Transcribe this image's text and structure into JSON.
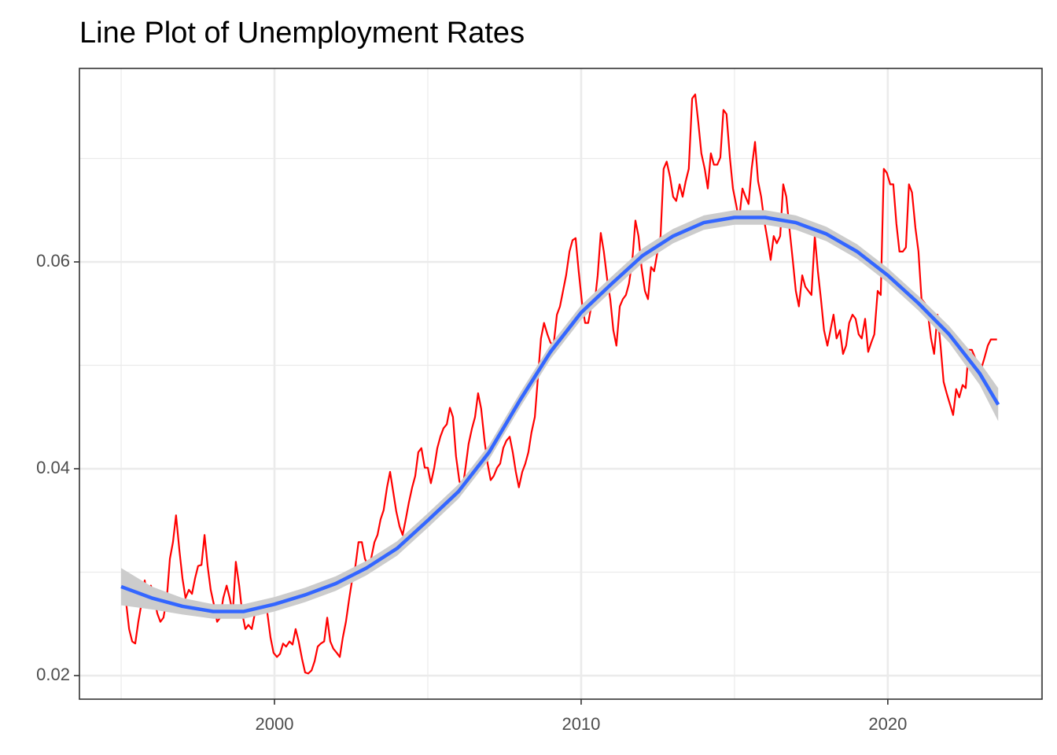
{
  "chart_data": {
    "type": "line",
    "title": "Line Plot of Unemployment Rates",
    "xlim": [
      1993.64,
      2025.03
    ],
    "xticks": [
      2000,
      2010,
      2020
    ],
    "ylim": [
      0.01772,
      0.07871
    ],
    "yticks": [
      0.02,
      0.04,
      0.06
    ],
    "minor_xticks": [
      1995,
      2005,
      2015,
      2025
    ],
    "minor_yticks": [
      0.03,
      0.05,
      0.07
    ],
    "grid": true,
    "series": [
      {
        "color": "#ff0000",
        "x": [
          1995.05,
          1995.15,
          1995.26,
          1995.36,
          1995.46,
          1995.56,
          1995.67,
          1995.77,
          1995.87,
          1995.97,
          1996.08,
          1996.18,
          1996.28,
          1996.38,
          1996.49,
          1996.59,
          1996.69,
          1996.79,
          1996.9,
          1997,
          1997.1,
          1997.21,
          1997.31,
          1997.41,
          1997.51,
          1997.62,
          1997.72,
          1997.82,
          1997.92,
          1998.03,
          1998.13,
          1998.23,
          1998.33,
          1998.44,
          1998.54,
          1998.64,
          1998.74,
          1998.85,
          1998.95,
          1999.05,
          1999.15,
          1999.26,
          1999.36,
          1999.46,
          1999.56,
          1999.67,
          1999.77,
          1999.87,
          1999.97,
          2000.08,
          2000.18,
          2000.28,
          2000.38,
          2000.49,
          2000.59,
          2000.69,
          2000.79,
          2000.9,
          2001,
          2001.1,
          2001.21,
          2001.31,
          2001.41,
          2001.51,
          2001.62,
          2001.72,
          2001.82,
          2001.92,
          2002.03,
          2002.13,
          2002.23,
          2002.33,
          2002.44,
          2002.54,
          2002.64,
          2002.74,
          2002.85,
          2002.95,
          2003.05,
          2003.15,
          2003.26,
          2003.36,
          2003.46,
          2003.56,
          2003.67,
          2003.77,
          2003.87,
          2003.97,
          2004.08,
          2004.18,
          2004.28,
          2004.38,
          2004.49,
          2004.59,
          2004.69,
          2004.79,
          2004.9,
          2005,
          2005.1,
          2005.21,
          2005.31,
          2005.41,
          2005.51,
          2005.62,
          2005.72,
          2005.82,
          2005.92,
          2006.03,
          2006.13,
          2006.23,
          2006.33,
          2006.44,
          2006.54,
          2006.64,
          2006.74,
          2006.85,
          2006.95,
          2007.05,
          2007.15,
          2007.26,
          2007.36,
          2007.46,
          2007.56,
          2007.67,
          2007.77,
          2007.87,
          2007.97,
          2008.08,
          2008.18,
          2008.28,
          2008.38,
          2008.49,
          2008.59,
          2008.69,
          2008.79,
          2008.9,
          2009,
          2009.1,
          2009.21,
          2009.31,
          2009.41,
          2009.51,
          2009.62,
          2009.72,
          2009.82,
          2009.92,
          2010.03,
          2010.13,
          2010.23,
          2010.33,
          2010.44,
          2010.54,
          2010.64,
          2010.74,
          2010.85,
          2010.95,
          2011.05,
          2011.15,
          2011.26,
          2011.36,
          2011.46,
          2011.56,
          2011.67,
          2011.77,
          2011.87,
          2011.97,
          2012.08,
          2012.18,
          2012.28,
          2012.38,
          2012.49,
          2012.59,
          2012.69,
          2012.79,
          2012.9,
          2013,
          2013.1,
          2013.21,
          2013.31,
          2013.41,
          2013.51,
          2013.62,
          2013.72,
          2013.82,
          2013.92,
          2014.03,
          2014.13,
          2014.23,
          2014.33,
          2014.44,
          2014.54,
          2014.64,
          2014.74,
          2014.85,
          2014.95,
          2015.05,
          2015.15,
          2015.26,
          2015.36,
          2015.46,
          2015.56,
          2015.67,
          2015.77,
          2015.87,
          2015.97,
          2016.08,
          2016.18,
          2016.28,
          2016.38,
          2016.49,
          2016.59,
          2016.69,
          2016.79,
          2016.9,
          2017,
          2017.1,
          2017.21,
          2017.31,
          2017.41,
          2017.51,
          2017.62,
          2017.72,
          2017.82,
          2017.92,
          2018.03,
          2018.13,
          2018.23,
          2018.33,
          2018.44,
          2018.54,
          2018.64,
          2018.74,
          2018.85,
          2018.95,
          2019.05,
          2019.15,
          2019.26,
          2019.36,
          2019.46,
          2019.56,
          2019.67,
          2019.77,
          2019.87,
          2019.97,
          2020.08,
          2020.18,
          2020.28,
          2020.38,
          2020.49,
          2020.59,
          2020.69,
          2020.79,
          2020.9,
          2021,
          2021.1,
          2021.21,
          2021.31,
          2021.41,
          2021.51,
          2021.62,
          2021.72,
          2021.82,
          2021.92,
          2022.03,
          2022.13,
          2022.23,
          2022.33,
          2022.44,
          2022.54,
          2022.64,
          2022.74,
          2022.85,
          2022.95,
          2023.05,
          2023.15,
          2023.26,
          2023.36,
          2023.46,
          2023.56
        ],
        "values": [
          0.0283,
          0.0274,
          0.0245,
          0.0233,
          0.0231,
          0.0252,
          0.0271,
          0.0292,
          0.0268,
          0.0287,
          0.0275,
          0.026,
          0.0252,
          0.0256,
          0.0275,
          0.0313,
          0.0329,
          0.0355,
          0.0321,
          0.0294,
          0.0275,
          0.0283,
          0.0279,
          0.0294,
          0.0306,
          0.0307,
          0.0336,
          0.0306,
          0.0283,
          0.0268,
          0.0252,
          0.0256,
          0.0275,
          0.0287,
          0.0275,
          0.026,
          0.031,
          0.0287,
          0.026,
          0.0245,
          0.0249,
          0.0245,
          0.026,
          0.0259,
          0.0264,
          0.0271,
          0.026,
          0.0237,
          0.0222,
          0.0218,
          0.0221,
          0.0231,
          0.0228,
          0.0233,
          0.023,
          0.0245,
          0.0233,
          0.0216,
          0.0203,
          0.0202,
          0.0205,
          0.0214,
          0.0228,
          0.0231,
          0.0233,
          0.0256,
          0.0233,
          0.0226,
          0.0222,
          0.0218,
          0.0237,
          0.0252,
          0.0275,
          0.0294,
          0.0306,
          0.0329,
          0.0329,
          0.0313,
          0.0306,
          0.0313,
          0.0329,
          0.0336,
          0.0351,
          0.036,
          0.0382,
          0.0397,
          0.0378,
          0.0359,
          0.0344,
          0.0336,
          0.0351,
          0.0367,
          0.0382,
          0.0393,
          0.0416,
          0.042,
          0.0401,
          0.0401,
          0.0386,
          0.0401,
          0.042,
          0.0431,
          0.0439,
          0.0443,
          0.0459,
          0.045,
          0.0412,
          0.0388,
          0.038,
          0.0401,
          0.0424,
          0.0439,
          0.045,
          0.0473,
          0.0458,
          0.0427,
          0.0405,
          0.0389,
          0.0393,
          0.0401,
          0.0405,
          0.042,
          0.0427,
          0.0431,
          0.0416,
          0.0397,
          0.0382,
          0.0397,
          0.0405,
          0.0416,
          0.0435,
          0.045,
          0.0488,
          0.0526,
          0.0541,
          0.053,
          0.0522,
          0.0519,
          0.0549,
          0.0557,
          0.0572,
          0.0587,
          0.061,
          0.0621,
          0.0623,
          0.0591,
          0.056,
          0.0541,
          0.0541,
          0.0557,
          0.056,
          0.0587,
          0.0628,
          0.061,
          0.0583,
          0.0564,
          0.0534,
          0.0519,
          0.0557,
          0.0564,
          0.0568,
          0.0579,
          0.0602,
          0.064,
          0.0625,
          0.0595,
          0.0572,
          0.0564,
          0.0595,
          0.0591,
          0.061,
          0.0625,
          0.069,
          0.0697,
          0.0682,
          0.0663,
          0.0659,
          0.0675,
          0.0663,
          0.0678,
          0.069,
          0.0758,
          0.0762,
          0.0735,
          0.0705,
          0.069,
          0.0671,
          0.0705,
          0.0694,
          0.0694,
          0.0701,
          0.0747,
          0.0743,
          0.0701,
          0.0671,
          0.0656,
          0.064,
          0.0671,
          0.0663,
          0.0656,
          0.069,
          0.0716,
          0.0678,
          0.0663,
          0.064,
          0.0621,
          0.0602,
          0.0625,
          0.0618,
          0.0625,
          0.0675,
          0.0663,
          0.0633,
          0.0602,
          0.0572,
          0.0557,
          0.0587,
          0.0576,
          0.0572,
          0.0568,
          0.0625,
          0.0591,
          0.0564,
          0.0534,
          0.0519,
          0.0534,
          0.0549,
          0.0526,
          0.0534,
          0.0511,
          0.0519,
          0.0541,
          0.0549,
          0.0545,
          0.053,
          0.0526,
          0.0545,
          0.0513,
          0.0522,
          0.053,
          0.0572,
          0.0568,
          0.069,
          0.0686,
          0.0675,
          0.0675,
          0.0637,
          0.061,
          0.061,
          0.0614,
          0.0675,
          0.0667,
          0.0633,
          0.061,
          0.0564,
          0.056,
          0.0549,
          0.0526,
          0.0511,
          0.0549,
          0.0519,
          0.0484,
          0.0473,
          0.0462,
          0.0452,
          0.0477,
          0.0469,
          0.0481,
          0.0478,
          0.0515,
          0.0515,
          0.0507,
          0.0496,
          0.0497,
          0.0507,
          0.0519,
          0.0525,
          0.0525,
          0.0525
        ]
      },
      {
        "color": "#3366ff",
        "band_color": "#cccccc",
        "x": [
          1995,
          1996,
          1997,
          1998,
          1999,
          2000,
          2001,
          2002,
          2003,
          2004,
          2005,
          2006,
          2007,
          2008,
          2009,
          2010,
          2011,
          2012,
          2013,
          2014,
          2015,
          2016,
          2017,
          2018,
          2019,
          2020,
          2021,
          2022,
          2023,
          2023.6
        ],
        "values": [
          0.0286,
          0.0275,
          0.0267,
          0.0262,
          0.0262,
          0.0269,
          0.0278,
          0.0289,
          0.0304,
          0.0323,
          0.035,
          0.0378,
          0.0416,
          0.0466,
          0.0513,
          0.0551,
          0.0579,
          0.0606,
          0.0625,
          0.0638,
          0.0643,
          0.0643,
          0.0638,
          0.0627,
          0.061,
          0.0587,
          0.056,
          0.053,
          0.0492,
          0.0462
        ],
        "lower": [
          0.0268,
          0.0264,
          0.0259,
          0.0255,
          0.0255,
          0.0262,
          0.0271,
          0.0282,
          0.0297,
          0.0316,
          0.0343,
          0.0371,
          0.0409,
          0.0459,
          0.0506,
          0.0544,
          0.0572,
          0.0599,
          0.0618,
          0.0631,
          0.0636,
          0.0636,
          0.0631,
          0.062,
          0.0603,
          0.058,
          0.0553,
          0.0522,
          0.0481,
          0.0446
        ],
        "upper": [
          0.0304,
          0.0286,
          0.0275,
          0.0269,
          0.0269,
          0.0276,
          0.0285,
          0.0296,
          0.0311,
          0.033,
          0.0357,
          0.0385,
          0.0423,
          0.0473,
          0.052,
          0.0558,
          0.0586,
          0.0613,
          0.0632,
          0.0645,
          0.065,
          0.065,
          0.0645,
          0.0634,
          0.0617,
          0.0594,
          0.0567,
          0.0538,
          0.0503,
          0.0478
        ]
      }
    ]
  }
}
